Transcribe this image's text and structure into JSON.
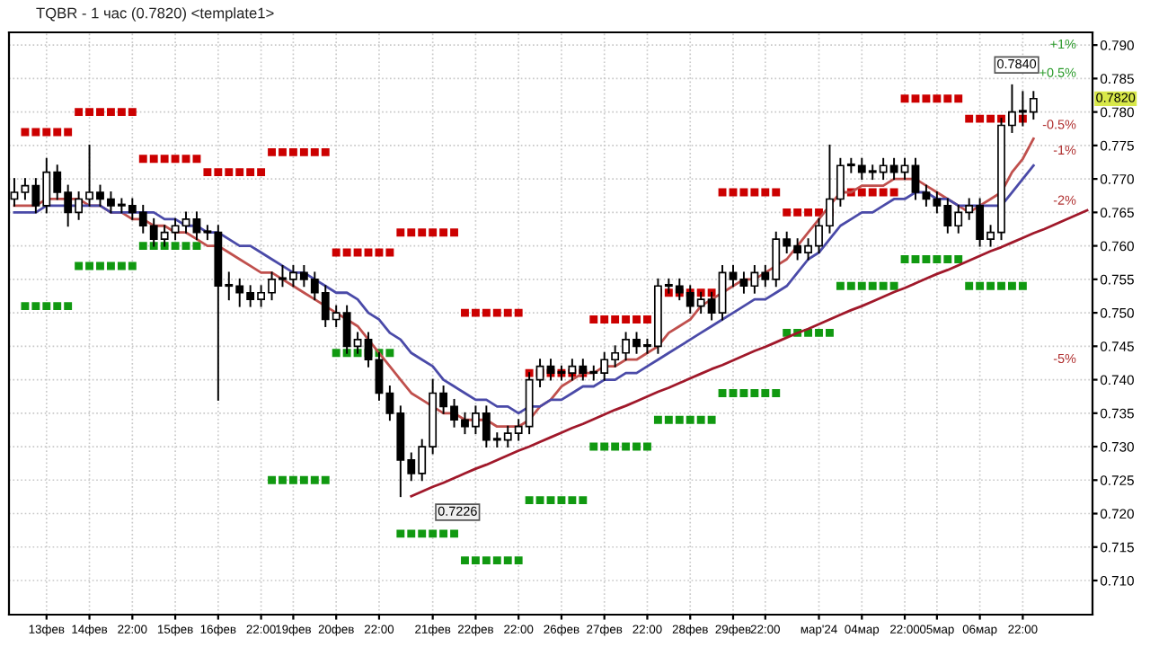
{
  "chart_data": {
    "type": "candlestick",
    "title": "TQBR - 1 час (0.7820) <template1>",
    "categories": [
      null,
      null,
      null,
      "13фев",
      null,
      null,
      null,
      "14фев",
      null,
      null,
      null,
      "22:00",
      null,
      null,
      null,
      "15фев",
      null,
      null,
      null,
      "16фев",
      null,
      null,
      null,
      "22:00",
      null,
      null,
      "19фев",
      null,
      null,
      null,
      "20фев",
      null,
      null,
      null,
      "22:00",
      null,
      null,
      null,
      null,
      "21фев",
      null,
      null,
      null,
      "22фев",
      null,
      null,
      null,
      "22:00",
      null,
      null,
      null,
      "26фев",
      null,
      null,
      null,
      "27фев",
      null,
      null,
      null,
      "22:00",
      null,
      null,
      null,
      "28фев",
      null,
      null,
      null,
      "29фев",
      null,
      null,
      "22:00",
      null,
      null,
      null,
      null,
      "мар'24",
      null,
      null,
      null,
      "04мар",
      null,
      null,
      null,
      "22:00",
      null,
      null,
      "05мар",
      null,
      null,
      null,
      "06мар",
      null,
      null,
      null,
      "22:00",
      null,
      null,
      null,
      null,
      null,
      null
    ],
    "ylim": [
      0.7049,
      0.7919
    ],
    "yticks": [
      {
        "value": 0.71,
        "label": "0.710"
      },
      0.715,
      {
        "value": 0.72,
        "label": "0.720"
      },
      0.725,
      {
        "value": 0.73,
        "label": "0.730"
      },
      0.735,
      {
        "value": 0.74,
        "label": "0.740"
      },
      0.745,
      {
        "value": 0.75,
        "label": "0.750"
      },
      0.755,
      {
        "value": 0.76,
        "label": "0.760"
      },
      0.765,
      {
        "value": 0.77,
        "label": "0.770"
      },
      0.775,
      {
        "value": 0.78,
        "label": "0.780"
      },
      0.785,
      {
        "value": 0.79,
        "label": "0.790"
      }
    ],
    "grid": true,
    "ohlc": [
      [
        0.767,
        0.77,
        0.766,
        0.768
      ],
      [
        0.768,
        0.77,
        0.767,
        0.769
      ],
      [
        0.769,
        0.77,
        0.765,
        0.766
      ],
      [
        0.766,
        0.773,
        0.765,
        0.771
      ],
      [
        0.771,
        0.772,
        0.767,
        0.768
      ],
      [
        0.768,
        0.769,
        0.763,
        0.765
      ],
      [
        0.765,
        0.768,
        0.764,
        0.767
      ],
      [
        0.767,
        0.775,
        0.766,
        0.768
      ],
      [
        0.768,
        0.769,
        0.766,
        0.767
      ],
      [
        0.767,
        0.768,
        0.765,
        0.766
      ],
      [
        0.766,
        0.767,
        0.765,
        0.766
      ],
      [
        0.766,
        0.767,
        0.764,
        0.765
      ],
      [
        0.765,
        0.766,
        0.762,
        0.763
      ],
      [
        0.763,
        0.764,
        0.76,
        0.761
      ],
      [
        0.761,
        0.763,
        0.76,
        0.762
      ],
      [
        0.762,
        0.764,
        0.761,
        0.763
      ],
      [
        0.763,
        0.765,
        0.762,
        0.764
      ],
      [
        0.764,
        0.765,
        0.761,
        0.762
      ],
      [
        0.762,
        0.763,
        0.761,
        0.762
      ],
      [
        0.762,
        0.763,
        0.737,
        0.754
      ],
      [
        0.754,
        0.756,
        0.752,
        0.754
      ],
      [
        0.754,
        0.755,
        0.751,
        0.753
      ],
      [
        0.753,
        0.754,
        0.751,
        0.752
      ],
      [
        0.752,
        0.754,
        0.751,
        0.753
      ],
      [
        0.753,
        0.756,
        0.752,
        0.755
      ],
      [
        0.755,
        0.757,
        0.754,
        0.755
      ],
      [
        0.755,
        0.757,
        0.754,
        0.756
      ],
      [
        0.756,
        0.757,
        0.754,
        0.755
      ],
      [
        0.755,
        0.756,
        0.752,
        0.753
      ],
      [
        0.753,
        0.754,
        0.748,
        0.749
      ],
      [
        0.749,
        0.751,
        0.748,
        0.75
      ],
      [
        0.75,
        0.751,
        0.744,
        0.745
      ],
      [
        0.745,
        0.747,
        0.744,
        0.746
      ],
      [
        0.746,
        0.747,
        0.742,
        0.743
      ],
      [
        0.743,
        0.744,
        0.737,
        0.738
      ],
      [
        0.738,
        0.739,
        0.734,
        0.735
      ],
      [
        0.735,
        0.736,
        0.7226,
        0.728
      ],
      [
        0.728,
        0.729,
        0.725,
        0.726
      ],
      [
        0.726,
        0.731,
        0.725,
        0.73
      ],
      [
        0.73,
        0.74,
        0.729,
        0.738
      ],
      [
        0.738,
        0.739,
        0.735,
        0.736
      ],
      [
        0.736,
        0.737,
        0.733,
        0.734
      ],
      [
        0.734,
        0.735,
        0.732,
        0.733
      ],
      [
        0.733,
        0.736,
        0.732,
        0.735
      ],
      [
        0.735,
        0.736,
        0.73,
        0.731
      ],
      [
        0.731,
        0.732,
        0.73,
        0.731
      ],
      [
        0.731,
        0.733,
        0.73,
        0.732
      ],
      [
        0.732,
        0.734,
        0.731,
        0.733
      ],
      [
        0.733,
        0.741,
        0.732,
        0.74
      ],
      [
        0.74,
        0.743,
        0.739,
        0.742
      ],
      [
        0.742,
        0.743,
        0.74,
        0.741
      ],
      [
        0.741,
        0.742,
        0.74,
        0.741
      ],
      [
        0.741,
        0.743,
        0.74,
        0.742
      ],
      [
        0.742,
        0.743,
        0.74,
        0.741
      ],
      [
        0.741,
        0.742,
        0.74,
        0.741
      ],
      [
        0.741,
        0.744,
        0.74,
        0.743
      ],
      [
        0.743,
        0.745,
        0.742,
        0.744
      ],
      [
        0.744,
        0.747,
        0.743,
        0.746
      ],
      [
        0.746,
        0.747,
        0.744,
        0.745
      ],
      [
        0.745,
        0.746,
        0.744,
        0.745
      ],
      [
        0.745,
        0.755,
        0.744,
        0.754
      ],
      [
        0.754,
        0.755,
        0.753,
        0.754
      ],
      [
        0.754,
        0.755,
        0.752,
        0.753
      ],
      [
        0.753,
        0.754,
        0.75,
        0.751
      ],
      [
        0.751,
        0.753,
        0.75,
        0.752
      ],
      [
        0.752,
        0.753,
        0.749,
        0.75
      ],
      [
        0.75,
        0.757,
        0.749,
        0.756
      ],
      [
        0.756,
        0.757,
        0.754,
        0.755
      ],
      [
        0.755,
        0.756,
        0.753,
        0.754
      ],
      [
        0.754,
        0.757,
        0.753,
        0.756
      ],
      [
        0.756,
        0.757,
        0.754,
        0.755
      ],
      [
        0.755,
        0.762,
        0.754,
        0.761
      ],
      [
        0.761,
        0.762,
        0.759,
        0.76
      ],
      [
        0.76,
        0.761,
        0.758,
        0.759
      ],
      [
        0.759,
        0.761,
        0.758,
        0.76
      ],
      [
        0.76,
        0.764,
        0.759,
        0.763
      ],
      [
        0.763,
        0.775,
        0.762,
        0.767
      ],
      [
        0.767,
        0.773,
        0.766,
        0.772
      ],
      [
        0.772,
        0.773,
        0.771,
        0.772
      ],
      [
        0.772,
        0.773,
        0.77,
        0.771
      ],
      [
        0.771,
        0.772,
        0.77,
        0.771
      ],
      [
        0.771,
        0.773,
        0.77,
        0.772
      ],
      [
        0.772,
        0.773,
        0.77,
        0.771
      ],
      [
        0.771,
        0.773,
        0.77,
        0.772
      ],
      [
        0.772,
        0.773,
        0.767,
        0.768
      ],
      [
        0.768,
        0.769,
        0.766,
        0.767
      ],
      [
        0.767,
        0.768,
        0.765,
        0.766
      ],
      [
        0.766,
        0.767,
        0.762,
        0.763
      ],
      [
        0.763,
        0.766,
        0.762,
        0.765
      ],
      [
        0.765,
        0.767,
        0.764,
        0.766
      ],
      [
        0.766,
        0.767,
        0.76,
        0.761
      ],
      [
        0.761,
        0.763,
        0.76,
        0.762
      ],
      [
        0.762,
        0.779,
        0.761,
        0.778
      ],
      [
        0.778,
        0.784,
        0.777,
        0.78
      ],
      [
        0.78,
        0.783,
        0.778,
        0.78
      ],
      [
        0.78,
        0.783,
        0.779,
        0.782
      ],
      null,
      null,
      null,
      null,
      null
    ],
    "series": [
      {
        "type": "scatter",
        "marker": "square",
        "color": "#cc0000",
        "values": [
          null,
          0.777,
          0.777,
          0.777,
          0.777,
          0.777,
          0.78,
          0.78,
          0.78,
          0.78,
          0.78,
          0.78,
          0.773,
          0.773,
          0.773,
          0.773,
          0.773,
          0.773,
          0.771,
          0.771,
          0.771,
          0.771,
          0.771,
          0.771,
          0.774,
          0.774,
          0.774,
          0.774,
          0.774,
          0.774,
          0.759,
          0.759,
          0.759,
          0.759,
          0.759,
          0.759,
          0.762,
          0.762,
          0.762,
          0.762,
          0.762,
          0.762,
          0.75,
          0.75,
          0.75,
          0.75,
          0.75,
          0.75,
          0.741,
          0.741,
          0.741,
          0.741,
          0.741,
          0.741,
          0.749,
          0.749,
          0.749,
          0.749,
          0.749,
          0.749,
          0.753,
          0.753,
          0.753,
          0.753,
          0.753,
          0.753,
          0.768,
          0.768,
          0.768,
          0.768,
          0.768,
          0.768,
          0.765,
          0.765,
          0.765,
          0.765,
          0.765,
          0.768,
          0.768,
          0.768,
          0.768,
          0.768,
          0.768,
          0.782,
          0.782,
          0.782,
          0.782,
          0.782,
          0.782,
          0.779,
          0.779,
          0.779,
          0.779,
          0.779,
          0.779,
          null,
          null,
          null,
          null,
          null,
          null
        ]
      },
      {
        "type": "scatter",
        "marker": "square",
        "color": "#119911",
        "values": [
          null,
          0.751,
          0.751,
          0.751,
          0.751,
          0.751,
          0.757,
          0.757,
          0.757,
          0.757,
          0.757,
          0.757,
          0.76,
          0.76,
          0.76,
          0.76,
          0.76,
          0.76,
          null,
          null,
          null,
          null,
          null,
          null,
          0.725,
          0.725,
          0.725,
          0.725,
          0.725,
          0.725,
          0.744,
          0.744,
          0.744,
          0.744,
          0.744,
          0.744,
          0.717,
          0.717,
          0.717,
          0.717,
          0.717,
          0.717,
          0.713,
          0.713,
          0.713,
          0.713,
          0.713,
          0.713,
          0.722,
          0.722,
          0.722,
          0.722,
          0.722,
          0.722,
          0.73,
          0.73,
          0.73,
          0.73,
          0.73,
          0.73,
          0.734,
          0.734,
          0.734,
          0.734,
          0.734,
          0.734,
          0.738,
          0.738,
          0.738,
          0.738,
          0.738,
          0.738,
          0.747,
          0.747,
          0.747,
          0.747,
          0.747,
          0.754,
          0.754,
          0.754,
          0.754,
          0.754,
          0.754,
          0.758,
          0.758,
          0.758,
          0.758,
          0.758,
          0.758,
          0.754,
          0.754,
          0.754,
          0.754,
          0.754,
          0.754,
          null,
          null,
          null,
          null,
          null,
          null
        ]
      },
      {
        "type": "line",
        "color": "#c0504d",
        "values": [
          0.766,
          0.766,
          0.766,
          0.767,
          0.767,
          0.767,
          0.767,
          0.766,
          0.766,
          0.765,
          0.765,
          0.764,
          0.764,
          0.763,
          0.763,
          0.762,
          0.762,
          0.761,
          0.76,
          0.76,
          0.759,
          0.758,
          0.757,
          0.756,
          0.756,
          0.755,
          0.754,
          0.753,
          0.752,
          0.751,
          0.75,
          0.749,
          0.748,
          0.746,
          0.744,
          0.742,
          0.74,
          0.738,
          0.737,
          0.736,
          0.735,
          0.735,
          0.734,
          0.734,
          0.734,
          0.733,
          0.733,
          0.733,
          0.734,
          0.736,
          0.737,
          0.739,
          0.74,
          0.741,
          0.741,
          0.742,
          0.742,
          0.743,
          0.743,
          0.744,
          0.745,
          0.747,
          0.748,
          0.749,
          0.751,
          0.752,
          0.753,
          0.754,
          0.755,
          0.755,
          0.756,
          0.757,
          0.758,
          0.76,
          0.762,
          0.764,
          0.766,
          0.768,
          0.768,
          0.769,
          0.769,
          0.769,
          0.77,
          0.77,
          0.77,
          0.769,
          0.768,
          0.767,
          0.766,
          0.765,
          0.766,
          0.767,
          0.768,
          0.771,
          0.773,
          0.776,
          null,
          null,
          null,
          null,
          null
        ]
      },
      {
        "type": "line",
        "color": "#4a4aa8",
        "values": [
          0.765,
          0.765,
          0.765,
          0.766,
          0.766,
          0.766,
          0.766,
          0.766,
          0.766,
          0.765,
          0.765,
          0.765,
          0.765,
          0.765,
          0.764,
          0.764,
          0.763,
          0.763,
          0.762,
          0.762,
          0.761,
          0.76,
          0.76,
          0.759,
          0.758,
          0.757,
          0.756,
          0.756,
          0.755,
          0.754,
          0.753,
          0.753,
          0.752,
          0.75,
          0.749,
          0.747,
          0.746,
          0.744,
          0.743,
          0.742,
          0.74,
          0.739,
          0.738,
          0.737,
          0.737,
          0.736,
          0.736,
          0.735,
          0.736,
          0.736,
          0.737,
          0.737,
          0.738,
          0.739,
          0.739,
          0.74,
          0.74,
          0.741,
          0.741,
          0.742,
          0.743,
          0.744,
          0.745,
          0.746,
          0.747,
          0.748,
          0.749,
          0.75,
          0.751,
          0.752,
          0.752,
          0.753,
          0.754,
          0.756,
          0.758,
          0.759,
          0.761,
          0.763,
          0.764,
          0.765,
          0.765,
          0.766,
          0.767,
          0.767,
          0.768,
          0.768,
          0.767,
          0.767,
          0.766,
          0.766,
          0.766,
          0.766,
          0.766,
          0.768,
          0.77,
          0.772,
          null,
          null,
          null,
          null,
          null
        ]
      },
      {
        "type": "line",
        "color": "#a0182a",
        "values": [
          null,
          null,
          null,
          null,
          null,
          null,
          null,
          null,
          null,
          null,
          null,
          null,
          null,
          null,
          null,
          null,
          null,
          null,
          null,
          null,
          null,
          null,
          null,
          null,
          null,
          null,
          null,
          null,
          null,
          null,
          null,
          null,
          null,
          null,
          null,
          null,
          null,
          0.7226,
          0.7233,
          0.724,
          0.7246,
          0.7253,
          0.726,
          0.7267,
          0.7273,
          0.728,
          0.7287,
          0.7294,
          0.73,
          0.7307,
          0.7314,
          0.7321,
          0.7328,
          0.7334,
          0.7341,
          0.7348,
          0.7355,
          0.7361,
          0.7368,
          0.7375,
          0.7382,
          0.7388,
          0.7395,
          0.7402,
          0.7409,
          0.7416,
          0.7422,
          0.7429,
          0.7436,
          0.7443,
          0.7449,
          0.7456,
          0.7463,
          0.747,
          0.7476,
          0.7483,
          0.749,
          0.7497,
          0.7504,
          0.751,
          0.7517,
          0.7524,
          0.7531,
          0.7537,
          0.7544,
          0.7551,
          0.7558,
          0.7564,
          0.7571,
          0.7578,
          0.7585,
          0.7592,
          0.7598,
          0.7605,
          0.7612,
          0.7619,
          0.7625,
          0.7632,
          0.7639,
          0.7646,
          0.7653
        ]
      }
    ],
    "annotations": [
      "0.7840",
      {
        "text": "0.7226",
        "x": "21фев",
        "y": 0.7226
      },
      "0.7820",
      "+1%",
      "+0.5%",
      "-0.5%",
      "-1%",
      "-2%",
      "-5%"
    ]
  }
}
